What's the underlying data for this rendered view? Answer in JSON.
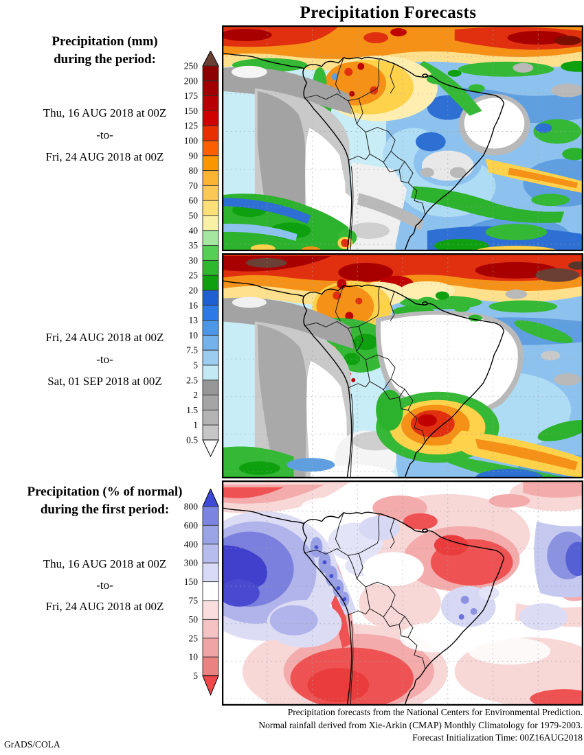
{
  "title": "Precipitation Forecasts",
  "panel1": {
    "heading": [
      "Precipitation (mm)",
      "during the period:"
    ],
    "period": [
      "Thu, 16 AUG 2018 at 00Z",
      "-to-",
      "Fri, 24 AUG 2018 at 00Z"
    ]
  },
  "panel2": {
    "period": [
      "Fri, 24 AUG 2018 at 00Z",
      "-to-",
      "Sat, 01 SEP 2018 at 00Z"
    ]
  },
  "panel3": {
    "heading": [
      "Precipitation (% of normal)",
      "during the first period:"
    ],
    "period": [
      "Thu, 16 AUG 2018 at 00Z",
      "-to-",
      "Fri, 24 AUG 2018 at 00Z"
    ]
  },
  "colorbar_mm": {
    "unit": "mm",
    "labels": [
      "250",
      "200",
      "175",
      "150",
      "125",
      "100",
      "90",
      "80",
      "70",
      "60",
      "50",
      "40",
      "35",
      "30",
      "25",
      "20",
      "16",
      "13",
      "10",
      "7.5",
      "5",
      "2.5",
      "2",
      "1.5",
      "1",
      "0.5"
    ],
    "segment_colors": [
      "#8b0000",
      "#a10000",
      "#b90000",
      "#cf0000",
      "#e63000",
      "#fa5f00",
      "#fa9600",
      "#fbb432",
      "#fbc855",
      "#fbe078",
      "#f8f0a5",
      "#a5e6a0",
      "#55d055",
      "#2db82d",
      "#0fa00f",
      "#1e5fd2",
      "#2d7ae6",
      "#4b96e6",
      "#73b2ea",
      "#9ccdf0",
      "#c3eaf4",
      "#969696",
      "#a5a5a5",
      "#b4b4b4",
      "#c6c6c6"
    ],
    "above_color": "#6b4034",
    "below_color": "#ffffff"
  },
  "colorbar_pct": {
    "unit": "% of normal",
    "labels": [
      "800",
      "600",
      "400",
      "300",
      "150",
      "75",
      "50",
      "25",
      "10",
      "5"
    ],
    "segment_colors": [
      "#7b84e0",
      "#9aa3e6",
      "#b7bcee",
      "#d9daf6",
      "#ffffff",
      "#fadede",
      "#f5c3c3",
      "#f0a3a3",
      "#eb8282"
    ],
    "above_color": "#3f49d8",
    "below_color": "#ef4848"
  },
  "footer": [
    "Precipitation forecasts from the National Centers for Environmental Prediction.",
    "Normal rainfall derived from Xie-Arkin (CMAP) Monthly Climatology for 1979-2003.",
    "Forecast Initialization Time: 00Z16AUG2018"
  ],
  "credit": "GrADS/COLA"
}
